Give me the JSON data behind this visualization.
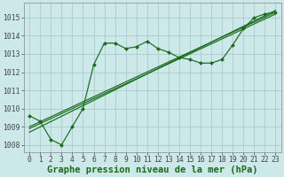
{
  "bg_color": "#cce8e8",
  "grid_color": "#aacccc",
  "line_color": "#1a6b1a",
  "marker_color": "#1a6b1a",
  "xlabel": "Graphe pression niveau de la mer (hPa)",
  "xlabel_fontsize": 7.5,
  "tick_fontsize": 5.8,
  "xlim": [
    -0.5,
    23.5
  ],
  "ylim": [
    1007.6,
    1015.8
  ],
  "yticks": [
    1008,
    1009,
    1010,
    1011,
    1012,
    1013,
    1014,
    1015
  ],
  "xticks": [
    0,
    1,
    2,
    3,
    4,
    5,
    6,
    7,
    8,
    9,
    10,
    11,
    12,
    13,
    14,
    15,
    16,
    17,
    18,
    19,
    20,
    21,
    22,
    23
  ],
  "series1_x": [
    0,
    1,
    2,
    3,
    4,
    5,
    6,
    7,
    8,
    9,
    10,
    11,
    12,
    13,
    14,
    15,
    16,
    17,
    18,
    19,
    20,
    21,
    22,
    23
  ],
  "series1_y": [
    1009.6,
    1009.3,
    1008.3,
    1008.0,
    1009.0,
    1010.0,
    1012.4,
    1013.6,
    1013.6,
    1013.3,
    1013.4,
    1013.7,
    1013.3,
    1013.1,
    1012.8,
    1012.7,
    1012.5,
    1012.5,
    1012.7,
    1013.5,
    1014.4,
    1015.0,
    1015.2,
    1015.3
  ],
  "series2_x": [
    0,
    23
  ],
  "series2_y": [
    1009.0,
    1015.3
  ],
  "series3_x": [
    0,
    23
  ],
  "series3_y": [
    1008.9,
    1015.2
  ],
  "series4_x": [
    0,
    23
  ],
  "series4_y": [
    1008.7,
    1015.4
  ]
}
